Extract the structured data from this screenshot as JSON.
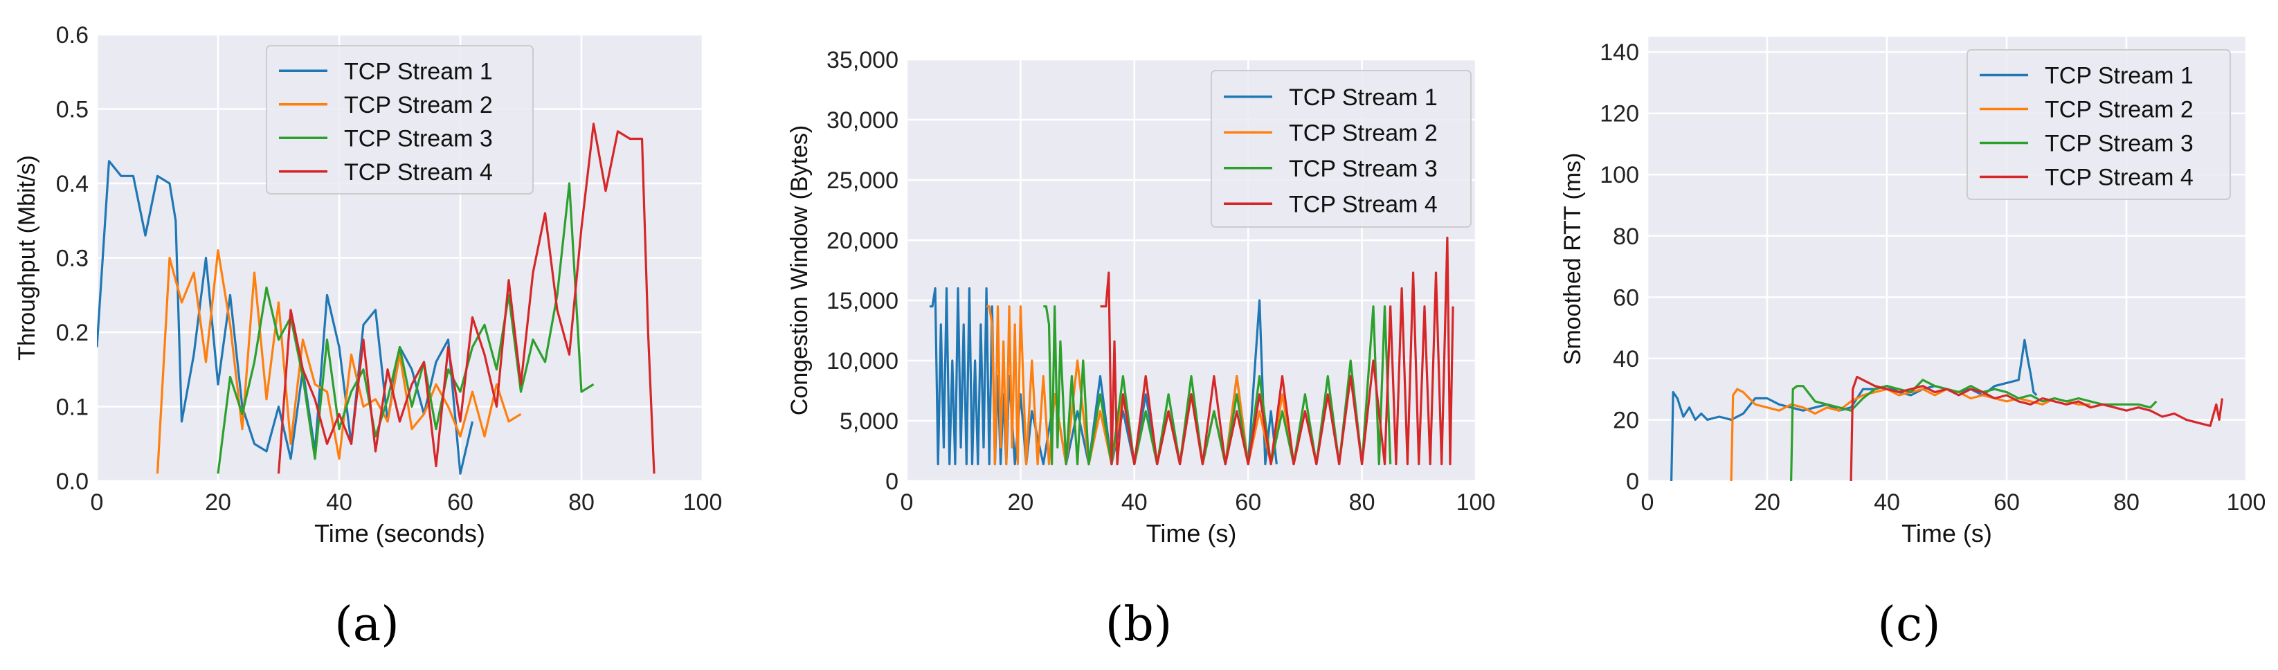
{
  "figure": {
    "panel_labels": [
      "(a)",
      "(b)",
      "(c)"
    ]
  },
  "colors": {
    "series": [
      "#1f77b4",
      "#ff7f0e",
      "#2ca02c",
      "#d62728"
    ],
    "plot_bg": "#eaeaf2",
    "grid": "#ffffff"
  },
  "chart_data": [
    {
      "type": "line",
      "title": "",
      "xlabel": "Time (seconds)",
      "ylabel": "Throughput (Mbit/s)",
      "xlim": [
        0,
        100
      ],
      "ylim": [
        0,
        0.6
      ],
      "xticks": [
        "0",
        "20",
        "40",
        "60",
        "80",
        "100"
      ],
      "yticks": [
        "0.0",
        "0.1",
        "0.2",
        "0.3",
        "0.4",
        "0.5",
        "0.6"
      ],
      "grid": true,
      "legend": "top-center",
      "series": [
        {
          "name": "TCP Stream 1",
          "x": [
            0,
            2,
            4,
            6,
            8,
            10,
            12,
            13,
            14,
            16,
            18,
            20,
            22,
            24,
            26,
            28,
            30,
            32,
            34,
            36,
            38,
            40,
            42,
            44,
            46,
            48,
            50,
            52,
            54,
            56,
            58,
            60,
            62
          ],
          "y": [
            0.18,
            0.43,
            0.41,
            0.41,
            0.33,
            0.41,
            0.4,
            0.35,
            0.08,
            0.17,
            0.3,
            0.13,
            0.25,
            0.1,
            0.05,
            0.04,
            0.1,
            0.03,
            0.15,
            0.04,
            0.25,
            0.18,
            0.05,
            0.21,
            0.23,
            0.08,
            0.18,
            0.15,
            0.09,
            0.16,
            0.19,
            0.01,
            0.08
          ]
        },
        {
          "name": "TCP Stream 2",
          "x": [
            10,
            12,
            14,
            16,
            18,
            20,
            22,
            24,
            26,
            28,
            30,
            32,
            34,
            36,
            38,
            40,
            42,
            44,
            46,
            48,
            50,
            52,
            54,
            56,
            58,
            60,
            62,
            64,
            66,
            68,
            70
          ],
          "y": [
            0.01,
            0.3,
            0.24,
            0.28,
            0.16,
            0.31,
            0.21,
            0.07,
            0.28,
            0.11,
            0.24,
            0.05,
            0.19,
            0.13,
            0.12,
            0.03,
            0.17,
            0.1,
            0.11,
            0.08,
            0.17,
            0.07,
            0.09,
            0.13,
            0.1,
            0.06,
            0.12,
            0.06,
            0.13,
            0.08,
            0.09
          ]
        },
        {
          "name": "TCP Stream 3",
          "x": [
            20,
            22,
            24,
            26,
            28,
            30,
            32,
            34,
            36,
            38,
            40,
            42,
            44,
            46,
            48,
            50,
            52,
            54,
            56,
            58,
            60,
            62,
            64,
            66,
            68,
            70,
            72,
            74,
            76,
            78,
            80,
            82
          ],
          "y": [
            0.01,
            0.14,
            0.09,
            0.16,
            0.26,
            0.19,
            0.22,
            0.14,
            0.03,
            0.19,
            0.07,
            0.12,
            0.15,
            0.06,
            0.11,
            0.18,
            0.1,
            0.16,
            0.07,
            0.15,
            0.12,
            0.18,
            0.21,
            0.15,
            0.25,
            0.12,
            0.19,
            0.16,
            0.25,
            0.4,
            0.12,
            0.13
          ]
        },
        {
          "name": "TCP Stream 4",
          "x": [
            30,
            32,
            34,
            36,
            38,
            40,
            42,
            44,
            46,
            48,
            50,
            52,
            54,
            56,
            58,
            60,
            62,
            64,
            66,
            68,
            70,
            72,
            74,
            76,
            78,
            80,
            82,
            84,
            86,
            88,
            90,
            91,
            92
          ],
          "y": [
            0.01,
            0.23,
            0.15,
            0.11,
            0.05,
            0.09,
            0.05,
            0.19,
            0.04,
            0.15,
            0.08,
            0.13,
            0.16,
            0.02,
            0.18,
            0.08,
            0.22,
            0.17,
            0.1,
            0.27,
            0.13,
            0.28,
            0.36,
            0.23,
            0.17,
            0.34,
            0.48,
            0.39,
            0.47,
            0.46,
            0.46,
            0.2,
            0.01
          ]
        }
      ]
    },
    {
      "type": "line",
      "title": "",
      "xlabel": "Time (s)",
      "ylabel": "Congestion Window (Bytes)",
      "xlim": [
        0,
        100
      ],
      "ylim": [
        0,
        35000
      ],
      "xticks": [
        "0",
        "20",
        "40",
        "60",
        "80",
        "100"
      ],
      "yticks": [
        "0",
        "5,000",
        "10,000",
        "15,000",
        "20,000",
        "25,000",
        "30,000",
        "35,000"
      ],
      "grid": true,
      "legend": "top-right",
      "series": [
        {
          "name": "TCP Stream 1",
          "x": [
            4,
            4.5,
            5,
            5.5,
            6,
            6.5,
            7,
            7.5,
            8,
            8.5,
            9,
            9.5,
            10,
            10.5,
            11,
            11.5,
            12,
            12.5,
            13,
            13.5,
            14,
            14.5,
            15,
            15.5,
            16,
            16.5,
            17,
            17.5,
            18,
            19,
            20,
            21,
            22,
            24,
            26,
            28,
            30,
            32,
            34,
            36,
            38,
            40,
            42,
            44,
            46,
            48,
            50,
            52,
            54,
            56,
            58,
            60,
            62,
            63,
            64,
            65
          ],
          "y": [
            14500,
            14500,
            16000,
            1400,
            13000,
            2800,
            16000,
            1400,
            10000,
            1400,
            16000,
            2800,
            13000,
            1400,
            16000,
            1400,
            10000,
            1400,
            13000,
            2800,
            16000,
            1400,
            14500,
            1400,
            8700,
            1400,
            7200,
            1400,
            8700,
            1400,
            7200,
            1400,
            5800,
            1400,
            7200,
            1400,
            5800,
            1400,
            8700,
            1400,
            5800,
            1400,
            7200,
            1400,
            5800,
            1400,
            7200,
            1400,
            5800,
            1400,
            8700,
            1400,
            15000,
            1400,
            5800,
            1400
          ]
        },
        {
          "name": "TCP Stream 2",
          "x": [
            14,
            14.5,
            15,
            15.5,
            16,
            16.5,
            17,
            17.5,
            18,
            18.5,
            19,
            19.5,
            20,
            21,
            22,
            23,
            24,
            25,
            26,
            28,
            30,
            32,
            34,
            36,
            38,
            40,
            42,
            44,
            46,
            48,
            50,
            52,
            54,
            56,
            58,
            60,
            62,
            64,
            66,
            68,
            70,
            72
          ],
          "y": [
            14500,
            14500,
            13000,
            1400,
            14500,
            2800,
            11600,
            1400,
            14500,
            2800,
            13000,
            1400,
            14500,
            1400,
            10000,
            1400,
            8700,
            1400,
            7200,
            1400,
            10000,
            1400,
            5800,
            1400,
            7200,
            1400,
            8700,
            1400,
            5800,
            1400,
            7200,
            1400,
            5800,
            1400,
            8700,
            1400,
            5800,
            1400,
            7200,
            1400,
            5800,
            1400
          ]
        },
        {
          "name": "TCP Stream 3",
          "x": [
            24,
            24.5,
            25,
            25.5,
            26,
            26.5,
            27,
            28,
            29,
            30,
            31,
            32,
            34,
            36,
            38,
            40,
            42,
            44,
            46,
            48,
            50,
            52,
            54,
            56,
            58,
            60,
            62,
            64,
            66,
            68,
            70,
            72,
            74,
            76,
            78,
            80,
            82,
            83,
            84,
            85
          ],
          "y": [
            14500,
            14500,
            13000,
            1400,
            14500,
            2800,
            11600,
            1400,
            8700,
            1400,
            10000,
            1400,
            7200,
            1400,
            8700,
            1400,
            5800,
            1400,
            7200,
            1400,
            8700,
            1400,
            5800,
            1400,
            7200,
            1400,
            8700,
            1400,
            5800,
            1400,
            7200,
            1400,
            8700,
            1400,
            10000,
            1400,
            14500,
            1400,
            14500,
            1400
          ]
        },
        {
          "name": "TCP Stream 4",
          "x": [
            34,
            34.5,
            35,
            35.5,
            36,
            36.5,
            37,
            38,
            40,
            42,
            44,
            46,
            48,
            50,
            52,
            54,
            56,
            58,
            60,
            62,
            64,
            66,
            68,
            70,
            72,
            74,
            76,
            78,
            80,
            82,
            84,
            85,
            86,
            87,
            88,
            89,
            90,
            91,
            92,
            93,
            94,
            95,
            95.5,
            96
          ],
          "y": [
            14500,
            14500,
            14500,
            17300,
            1400,
            11600,
            1400,
            7200,
            1400,
            8700,
            1400,
            5800,
            1400,
            7200,
            1400,
            8700,
            1400,
            5800,
            1400,
            7200,
            1400,
            8700,
            1400,
            5800,
            1400,
            7200,
            1400,
            8700,
            1400,
            10000,
            1400,
            14500,
            1400,
            16000,
            1400,
            17300,
            1400,
            14500,
            1400,
            17300,
            1400,
            20200,
            1400,
            14500
          ]
        }
      ]
    },
    {
      "type": "line",
      "title": "",
      "xlabel": "Time (s)",
      "ylabel": "Smoothed RTT (ms)",
      "xlim": [
        0,
        100
      ],
      "ylim": [
        0,
        145
      ],
      "xticks": [
        "0",
        "20",
        "40",
        "60",
        "80",
        "100"
      ],
      "yticks": [
        "0",
        "20",
        "40",
        "60",
        "80",
        "100",
        "120",
        "140"
      ],
      "grid": true,
      "legend": "top-right",
      "series": [
        {
          "name": "TCP Stream 1",
          "x": [
            4,
            4.3,
            5,
            6,
            7,
            8,
            9,
            10,
            12,
            14,
            16,
            18,
            20,
            22,
            24,
            26,
            28,
            30,
            32,
            34,
            36,
            38,
            40,
            42,
            44,
            46,
            48,
            50,
            52,
            54,
            56,
            58,
            60,
            62,
            63,
            63.5,
            64,
            64.5,
            65
          ],
          "y": [
            0,
            29,
            27,
            21,
            24,
            20,
            22,
            20,
            21,
            20,
            22,
            27,
            27,
            25,
            24,
            23,
            24,
            25,
            23,
            24,
            30,
            30,
            31,
            29,
            28,
            30,
            31,
            30,
            29,
            30,
            28,
            31,
            32,
            33,
            46,
            40,
            35,
            29,
            28
          ]
        },
        {
          "name": "TCP Stream 2",
          "x": [
            14,
            14.3,
            15,
            16,
            18,
            20,
            22,
            24,
            26,
            28,
            30,
            32,
            34,
            36,
            38,
            40,
            42,
            44,
            46,
            48,
            50,
            52,
            54,
            56,
            58,
            60,
            62,
            64,
            66,
            68,
            70,
            72,
            74
          ],
          "y": [
            0,
            28,
            30,
            29,
            25,
            24,
            23,
            25,
            24,
            22,
            24,
            23,
            26,
            28,
            29,
            30,
            28,
            29,
            30,
            28,
            30,
            29,
            27,
            28,
            27,
            26,
            27,
            26,
            25,
            27,
            26,
            25,
            25
          ]
        },
        {
          "name": "TCP Stream 3",
          "x": [
            24,
            24.3,
            25,
            26,
            28,
            30,
            32,
            34,
            36,
            38,
            40,
            42,
            44,
            46,
            48,
            50,
            52,
            54,
            56,
            58,
            60,
            62,
            64,
            66,
            68,
            70,
            72,
            74,
            76,
            78,
            80,
            82,
            84,
            85
          ],
          "y": [
            0,
            30,
            31,
            31,
            26,
            25,
            24,
            23,
            27,
            30,
            31,
            30,
            29,
            33,
            31,
            30,
            29,
            31,
            29,
            30,
            29,
            27,
            28,
            26,
            27,
            26,
            27,
            26,
            25,
            25,
            25,
            25,
            24,
            26
          ]
        },
        {
          "name": "TCP Stream 4",
          "x": [
            34,
            34.3,
            35,
            36,
            38,
            40,
            42,
            44,
            46,
            48,
            50,
            52,
            54,
            56,
            58,
            60,
            62,
            64,
            66,
            68,
            70,
            72,
            74,
            76,
            78,
            80,
            82,
            84,
            86,
            88,
            90,
            92,
            94,
            95,
            95.5,
            96
          ],
          "y": [
            0,
            30,
            34,
            33,
            31,
            30,
            29,
            30,
            31,
            29,
            30,
            28,
            30,
            29,
            27,
            28,
            26,
            25,
            27,
            26,
            25,
            26,
            24,
            25,
            24,
            23,
            24,
            23,
            21,
            22,
            20,
            19,
            18,
            25,
            20,
            27
          ]
        }
      ]
    }
  ]
}
